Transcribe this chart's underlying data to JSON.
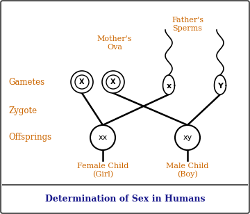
{
  "title": "Determination of Sex in Humans",
  "title_color": "#1a1a8c",
  "bg_color": "#ffffff",
  "border_color": "#555555",
  "gametes_label": "Gametes",
  "zygote_label": "Zygote",
  "offsprings_label": "Offsprings",
  "mothers_ova_label": "Mother's\nOva",
  "fathers_sperms_label": "Father's\nSperms",
  "female_child_label": "Female Child\n(Girl)",
  "male_child_label": "Male Child\n(Boy)",
  "text_color_orange": "#cc6600",
  "text_color_navy": "#1a1a8c"
}
